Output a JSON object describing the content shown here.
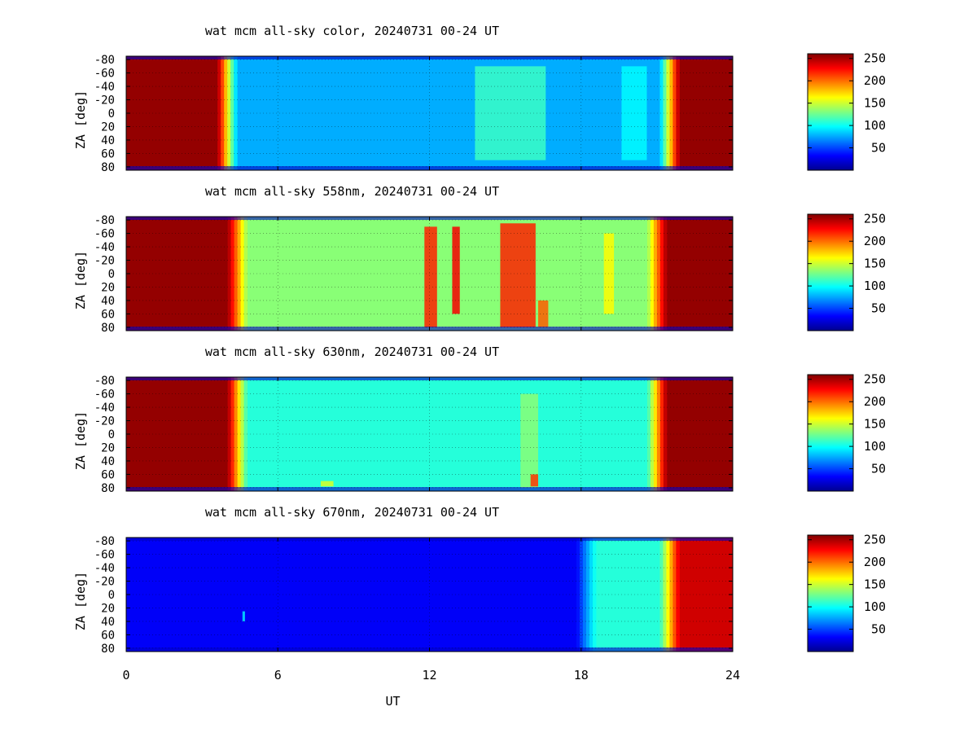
{
  "chart_data": [
    {
      "type": "heatmap",
      "title": "wat mcm all-sky color, 20240731 00-24 UT",
      "ylabel": "ZA [deg]",
      "xlim": [
        0,
        24
      ],
      "ylim": [
        -85,
        85
      ],
      "yticks": [
        "-80",
        "-60",
        "-40",
        "-20",
        "0",
        "20",
        "40",
        "60",
        "80"
      ],
      "colorbar": {
        "min": 0,
        "max": 255,
        "ticks": [
          "50",
          "100",
          "150",
          "200",
          "250"
        ]
      },
      "regions": [
        {
          "label": "saturated-dawn",
          "ut": [
            0,
            4.0
          ],
          "value": 250
        },
        {
          "label": "night",
          "ut": [
            4.0,
            21.5
          ],
          "value": 75
        },
        {
          "label": "saturated-dusk",
          "ut": [
            21.5,
            24
          ],
          "value": 250
        }
      ],
      "features": [
        {
          "ut": [
            13.8,
            16.6
          ],
          "za": [
            -70,
            70
          ],
          "value": 110
        },
        {
          "ut": [
            19.6,
            20.6
          ],
          "za": [
            -70,
            70
          ],
          "value": 95
        }
      ]
    },
    {
      "type": "heatmap",
      "title": "wat mcm all-sky 558nm, 20240731 00-24 UT",
      "ylabel": "ZA [deg]",
      "xlim": [
        0,
        24
      ],
      "ylim": [
        -85,
        85
      ],
      "yticks": [
        "-80",
        "-60",
        "-40",
        "-20",
        "0",
        "20",
        "40",
        "60",
        "80"
      ],
      "colorbar": {
        "min": 0,
        "max": 255,
        "ticks": [
          "50",
          "100",
          "150",
          "200",
          "250"
        ]
      },
      "regions": [
        {
          "label": "saturated-dawn",
          "ut": [
            0,
            4.4
          ],
          "value": 250
        },
        {
          "label": "night",
          "ut": [
            4.4,
            21.0
          ],
          "value": 130
        },
        {
          "label": "saturated-dusk",
          "ut": [
            21.0,
            24
          ],
          "value": 250
        }
      ],
      "features": [
        {
          "ut": [
            11.8,
            12.3
          ],
          "za": [
            -70,
            80
          ],
          "value": 215
        },
        {
          "ut": [
            12.9,
            13.2
          ],
          "za": [
            -70,
            60
          ],
          "value": 225
        },
        {
          "ut": [
            14.8,
            16.2
          ],
          "za": [
            -75,
            80
          ],
          "value": 215
        },
        {
          "ut": [
            16.3,
            16.7
          ],
          "za": [
            40,
            80
          ],
          "value": 200
        },
        {
          "ut": [
            18.9,
            19.3
          ],
          "za": [
            -60,
            60
          ],
          "value": 160
        }
      ]
    },
    {
      "type": "heatmap",
      "title": "wat mcm all-sky 630nm, 20240731 00-24 UT",
      "ylabel": "ZA [deg]",
      "xlim": [
        0,
        24
      ],
      "ylim": [
        -85,
        85
      ],
      "yticks": [
        "-80",
        "-60",
        "-40",
        "-20",
        "0",
        "20",
        "40",
        "60",
        "80"
      ],
      "colorbar": {
        "min": 0,
        "max": 255,
        "ticks": [
          "50",
          "100",
          "150",
          "200",
          "250"
        ]
      },
      "regions": [
        {
          "label": "saturated-dawn",
          "ut": [
            0,
            4.4
          ],
          "value": 250
        },
        {
          "label": "night",
          "ut": [
            4.4,
            21.0
          ],
          "value": 105
        },
        {
          "label": "saturated-dusk",
          "ut": [
            21.0,
            24
          ],
          "value": 250
        }
      ],
      "features": [
        {
          "ut": [
            15.6,
            16.3
          ],
          "za": [
            -60,
            80
          ],
          "value": 130
        },
        {
          "ut": [
            16.0,
            16.3
          ],
          "za": [
            60,
            78
          ],
          "value": 210
        },
        {
          "ut": [
            7.7,
            8.2
          ],
          "za": [
            70,
            78
          ],
          "value": 150
        }
      ]
    },
    {
      "type": "heatmap",
      "title": "wat mcm all-sky 670nm, 20240731 00-24 UT",
      "ylabel": "ZA [deg]",
      "xlim": [
        0,
        24
      ],
      "ylim": [
        -85,
        85
      ],
      "yticks": [
        "-80",
        "-60",
        "-40",
        "-20",
        "0",
        "20",
        "40",
        "60",
        "80"
      ],
      "xticks": [
        "0",
        "6",
        "12",
        "18",
        "24"
      ],
      "xlabel": "UT",
      "colorbar": {
        "min": 0,
        "max": 255,
        "ticks": [
          "50",
          "100",
          "150",
          "200",
          "250"
        ]
      },
      "regions": [
        {
          "label": "dark",
          "ut": [
            0,
            18.2
          ],
          "value": 30
        },
        {
          "label": "night",
          "ut": [
            18.2,
            21.5
          ],
          "value": 105
        },
        {
          "label": "saturated-dusk",
          "ut": [
            21.5,
            24
          ],
          "value": 235
        }
      ],
      "features": [
        {
          "ut": [
            4.6,
            4.7
          ],
          "za": [
            25,
            40
          ],
          "value": 90
        }
      ]
    }
  ]
}
